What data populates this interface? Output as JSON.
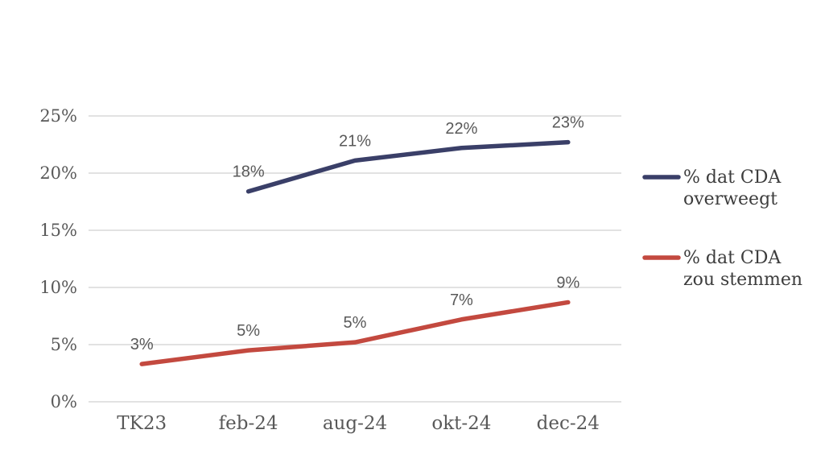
{
  "chart_data": {
    "type": "line",
    "title": "",
    "xlabel": "",
    "ylabel": "",
    "categories": [
      "TK23",
      "feb-24",
      "aug-24",
      "okt-24",
      "dec-24"
    ],
    "series": [
      {
        "name": "% dat CDA overweegt",
        "color": "#3a3f68",
        "values": [
          null,
          18.4,
          21.1,
          22.2,
          22.7
        ],
        "point_labels": [
          "",
          "18%",
          "21%",
          "22%",
          "23%"
        ]
      },
      {
        "name": "% dat CDA zou stemmen",
        "color": "#c3493f",
        "values": [
          3.3,
          4.5,
          5.2,
          7.2,
          8.7
        ],
        "point_labels": [
          "3%",
          "5%",
          "5%",
          "7%",
          "9%"
        ]
      }
    ],
    "ylim": [
      0,
      25
    ],
    "yticks": [
      0,
      5,
      10,
      15,
      20,
      25
    ],
    "ytick_labels": [
      "0%",
      "5%",
      "10%",
      "15%",
      "20%",
      "25%"
    ],
    "grid": true,
    "legend_position": "right",
    "colors": {
      "background": "#ffffff",
      "gridline": "#d9d9d9",
      "axis_tick_label": "#595959",
      "data_label": "#595959",
      "legend_text": "#3d3d3d"
    }
  }
}
